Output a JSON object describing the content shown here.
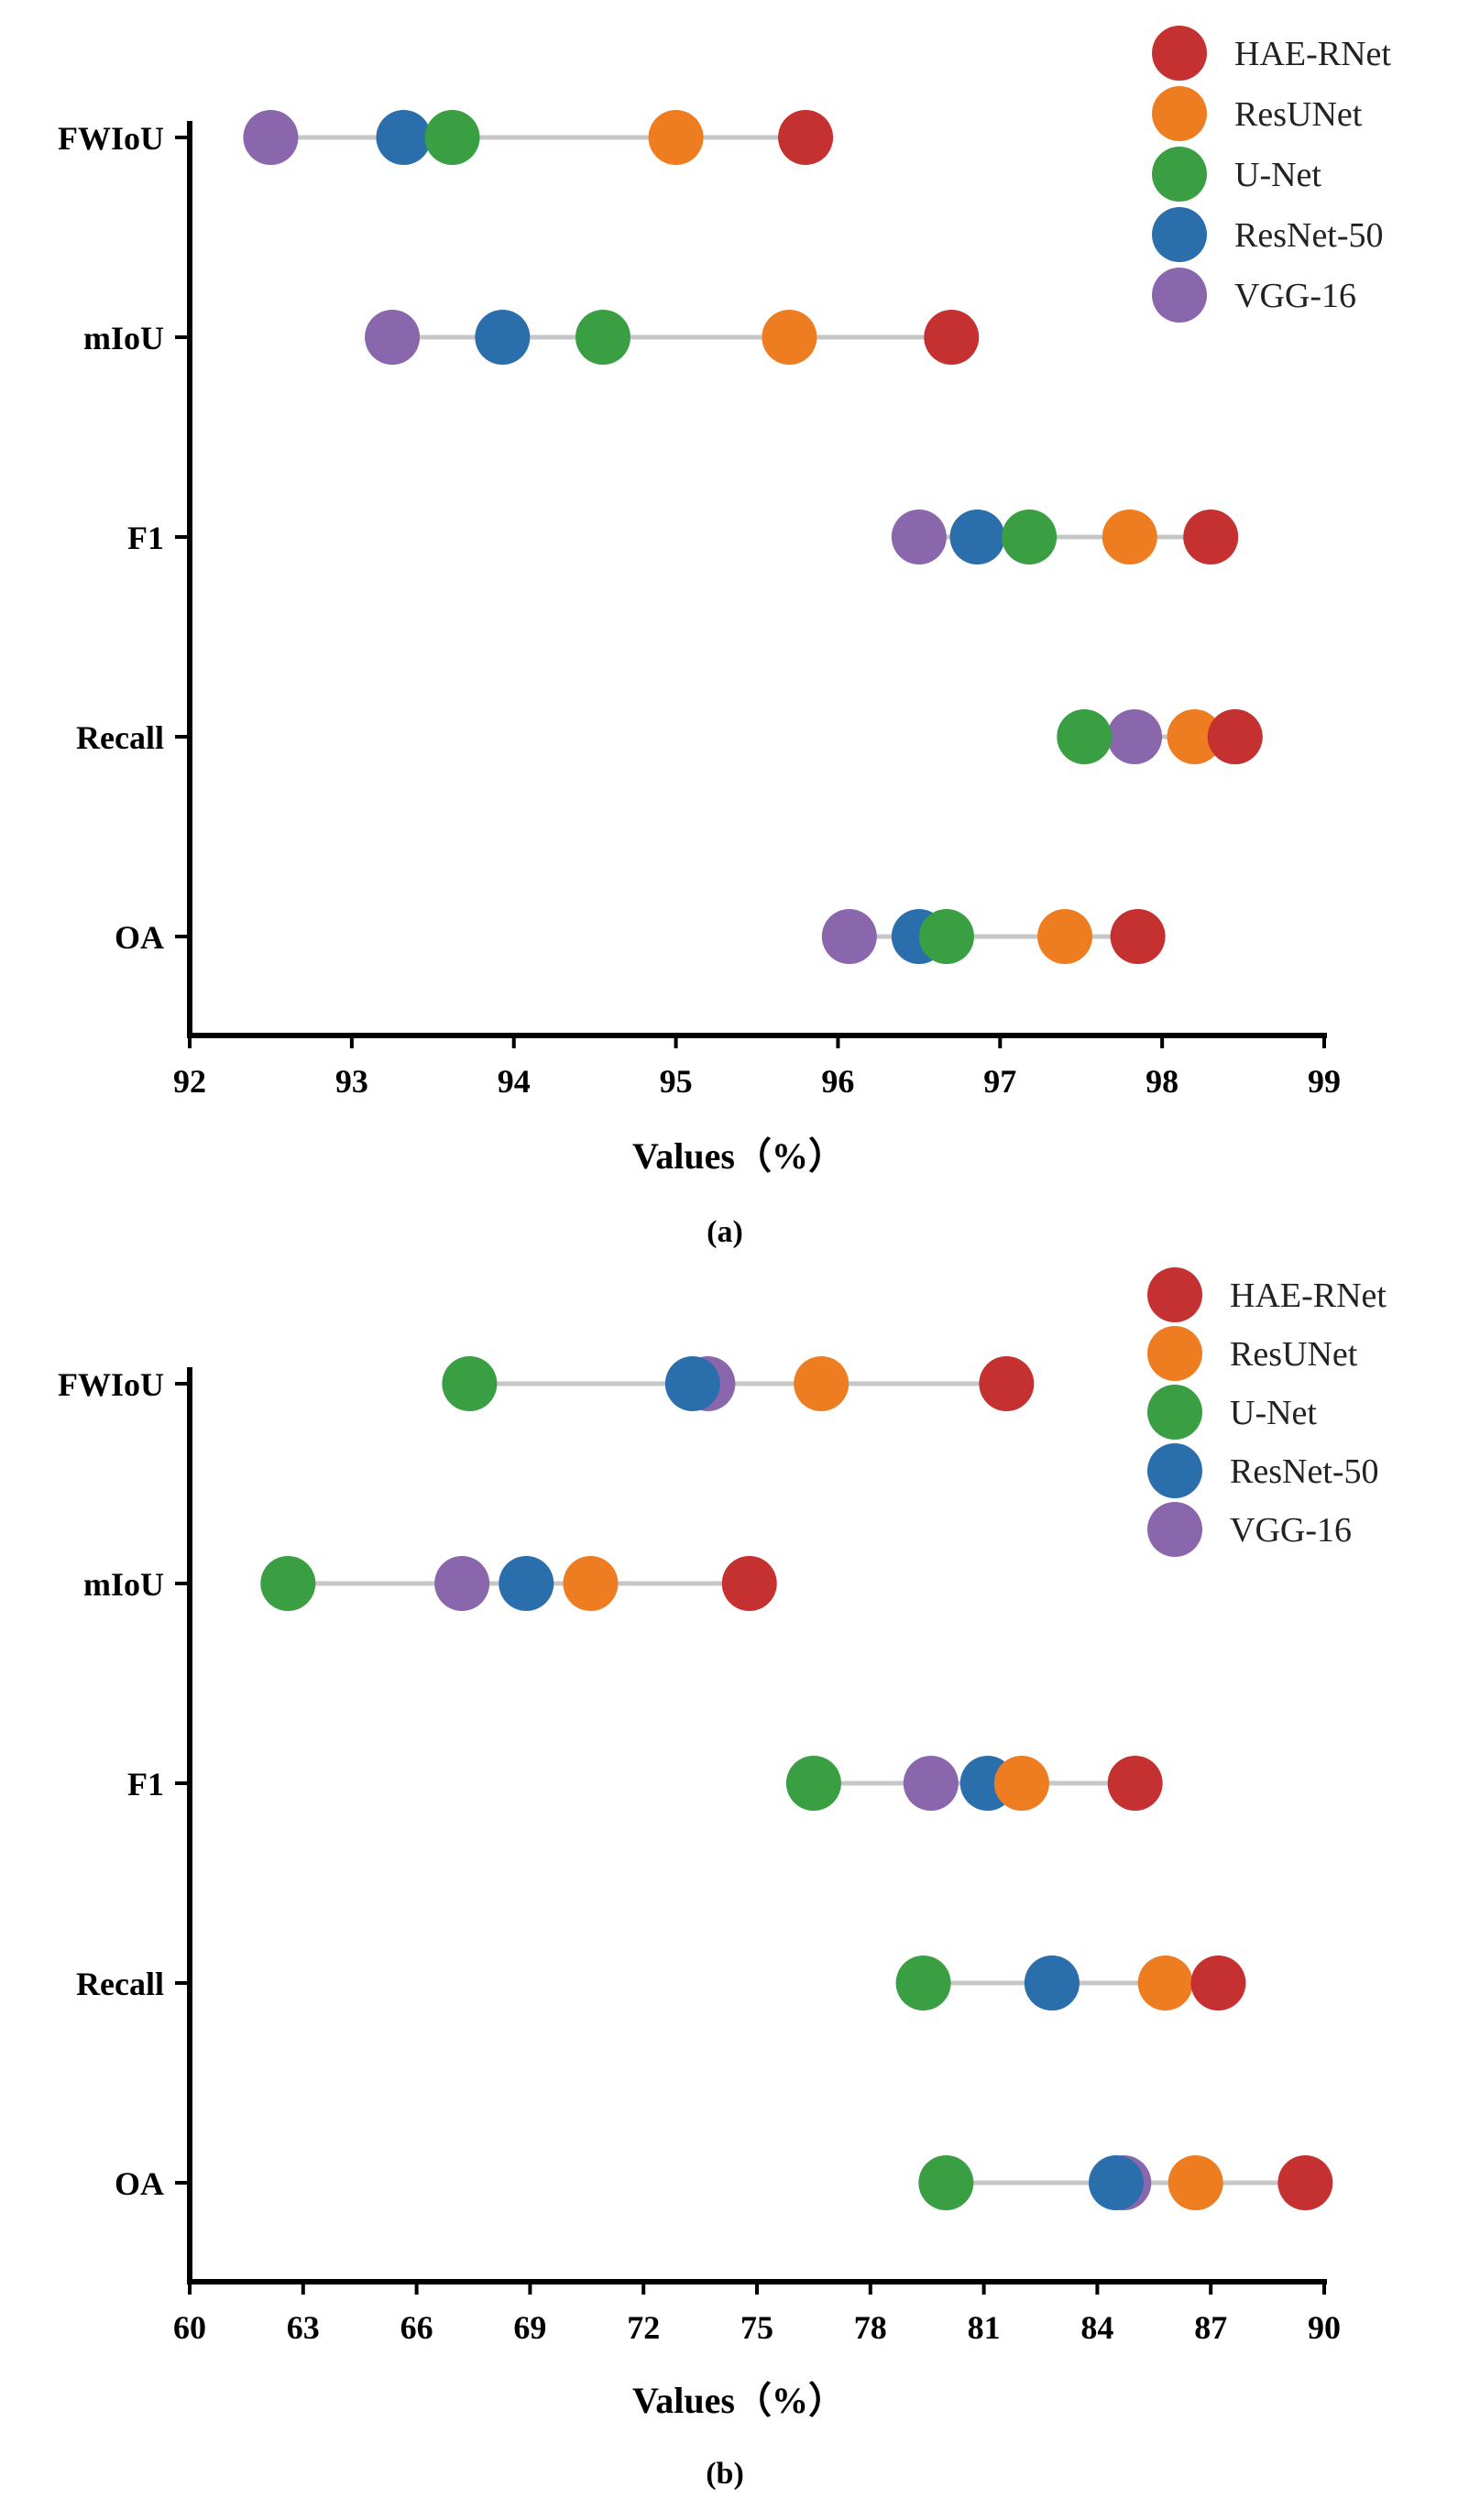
{
  "colors": {
    "HAE-RNet": "#c53030",
    "ResUNet": "#ee7d22",
    "U-Net": "#3a9e43",
    "ResNet-50": "#2a6fac",
    "VGG-16": "#8a66ad",
    "connector": "#c7c7c7",
    "axis": "#000000"
  },
  "chart_data": [
    {
      "type": "scatter",
      "caption": "(a)",
      "xlabel": "Values（%）",
      "ylabel": "",
      "xlim": [
        92,
        99
      ],
      "xticks": [
        "92",
        "93",
        "94",
        "95",
        "96",
        "97",
        "98",
        "99"
      ],
      "xtick_values": [
        92,
        93,
        94,
        95,
        96,
        97,
        98,
        99
      ],
      "categories": [
        "FWIoU",
        "mIoU",
        "F1",
        "Recall",
        "OA"
      ],
      "legend_position": "top-right",
      "series": [
        {
          "name": "HAE-RNet",
          "values": [
            95.8,
            96.7,
            98.3,
            98.45,
            97.85
          ]
        },
        {
          "name": "ResUNet",
          "values": [
            95.0,
            95.7,
            97.8,
            98.2,
            97.4
          ]
        },
        {
          "name": "U-Net",
          "values": [
            93.62,
            94.55,
            97.18,
            97.52,
            96.67
          ]
        },
        {
          "name": "ResNet-50",
          "values": [
            93.32,
            93.93,
            96.86,
            98.45,
            96.5
          ]
        },
        {
          "name": "VGG-16",
          "values": [
            92.5,
            93.25,
            96.5,
            97.83,
            96.07
          ]
        }
      ]
    },
    {
      "type": "scatter",
      "caption": "(b)",
      "xlabel": "Values（%）",
      "ylabel": "",
      "xlim": [
        60,
        90
      ],
      "xticks": [
        "60",
        "63",
        "66",
        "69",
        "72",
        "75",
        "78",
        "81",
        "84",
        "87",
        "90"
      ],
      "xtick_values": [
        60,
        63,
        66,
        69,
        72,
        75,
        78,
        81,
        84,
        87,
        90
      ],
      "categories": [
        "FWIoU",
        "mIoU",
        "F1",
        "Recall",
        "OA"
      ],
      "legend_position": "top-right",
      "series": [
        {
          "name": "HAE-RNet",
          "values": [
            81.6,
            74.8,
            85.0,
            87.2,
            89.5
          ]
        },
        {
          "name": "ResUNet",
          "values": [
            76.7,
            70.6,
            82.0,
            85.8,
            86.6
          ]
        },
        {
          "name": "U-Net",
          "values": [
            67.4,
            62.6,
            76.5,
            79.4,
            80.0
          ]
        },
        {
          "name": "ResNet-50",
          "values": [
            73.3,
            68.9,
            81.1,
            82.8,
            84.5
          ]
        },
        {
          "name": "VGG-16",
          "values": [
            73.7,
            67.2,
            79.6,
            82.8,
            84.7
          ]
        }
      ]
    }
  ]
}
